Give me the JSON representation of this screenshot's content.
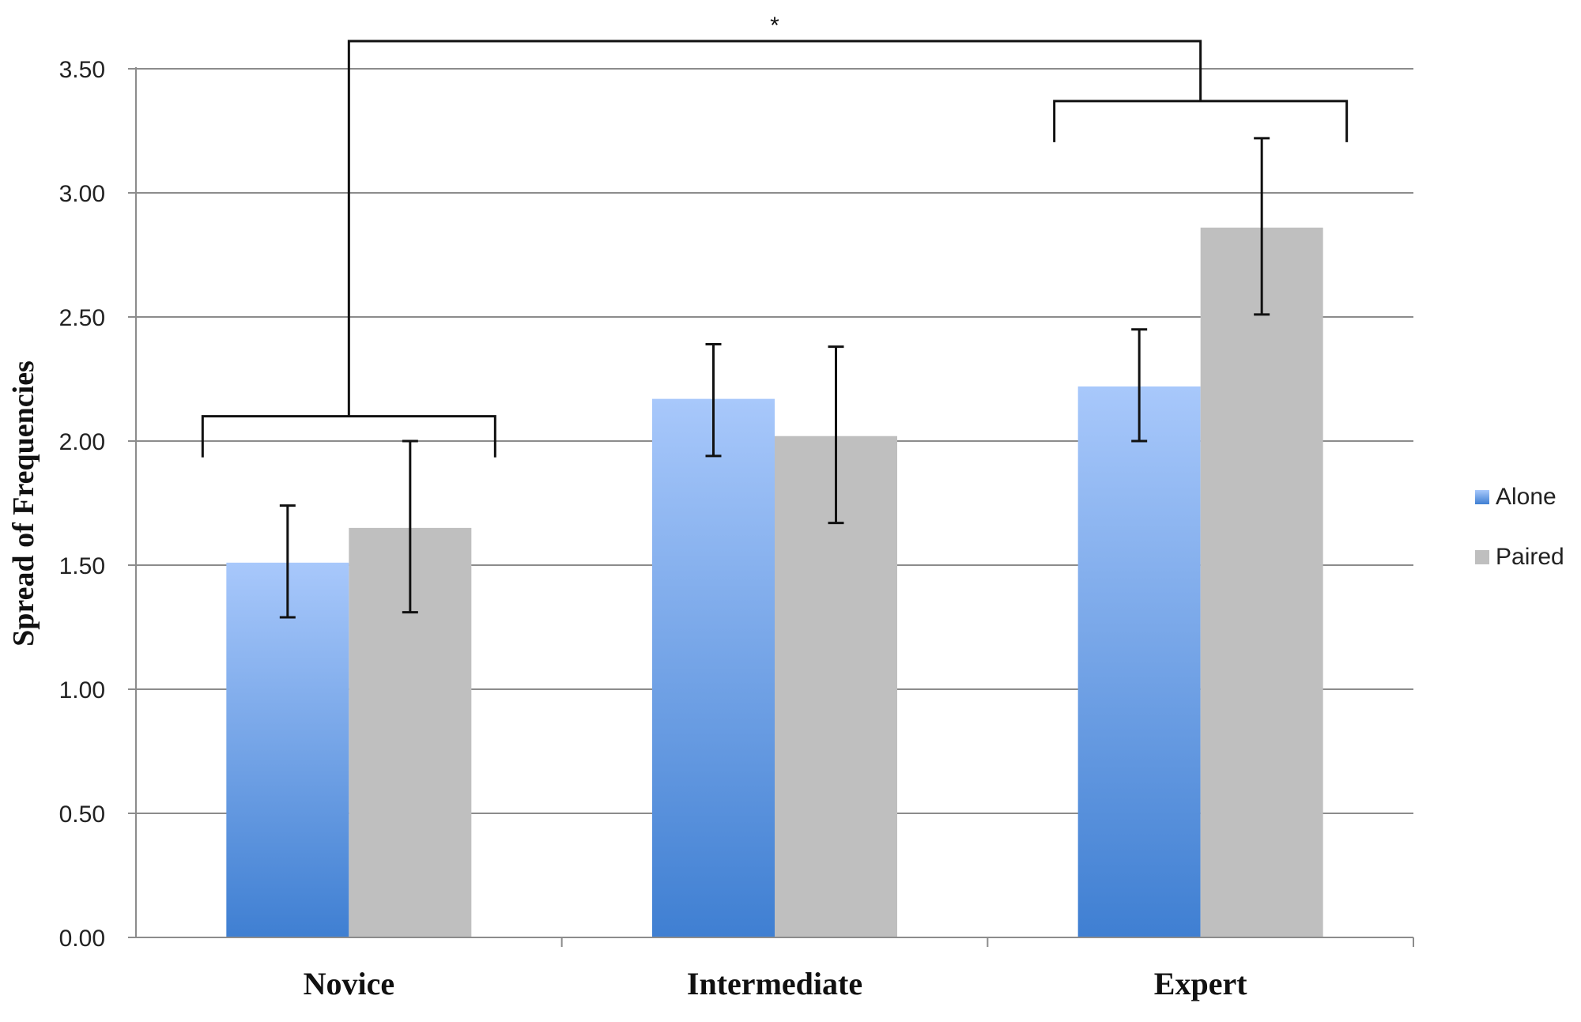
{
  "chart_data": {
    "type": "bar",
    "categories": [
      "Novice",
      "Intermediate",
      "Expert"
    ],
    "series": [
      {
        "name": "Alone",
        "values": [
          1.51,
          2.17,
          2.22
        ],
        "error_low": [
          1.29,
          1.94,
          2.0
        ],
        "error_high": [
          1.74,
          2.39,
          2.45
        ],
        "color_top": "#a8c8fb",
        "color_bottom": "#3f7fd2"
      },
      {
        "name": "Paired",
        "values": [
          1.65,
          2.02,
          2.86
        ],
        "error_low": [
          1.31,
          1.67,
          2.51
        ],
        "error_high": [
          2.0,
          2.38,
          3.22
        ],
        "color": "#bfbfbf"
      }
    ],
    "title": "",
    "xlabel": "",
    "ylabel": "Spread of Frequencies",
    "ylim": [
      0,
      3.5
    ],
    "yticks": [
      0,
      0.5,
      1.0,
      1.5,
      2.0,
      2.5,
      3.0,
      3.5
    ],
    "ytick_labels": [
      "0.00",
      "0.50",
      "1.00",
      "1.50",
      "2.00",
      "2.50",
      "3.00",
      "3.50"
    ],
    "grid": true,
    "legend_position": "right",
    "significance": {
      "marker": "*",
      "between": [
        "Novice",
        "Expert"
      ]
    },
    "colors": {
      "gridline": "#8c8c8c",
      "axis": "#8c8c8c",
      "errorbar": "#111111",
      "bracket": "#111111"
    }
  }
}
